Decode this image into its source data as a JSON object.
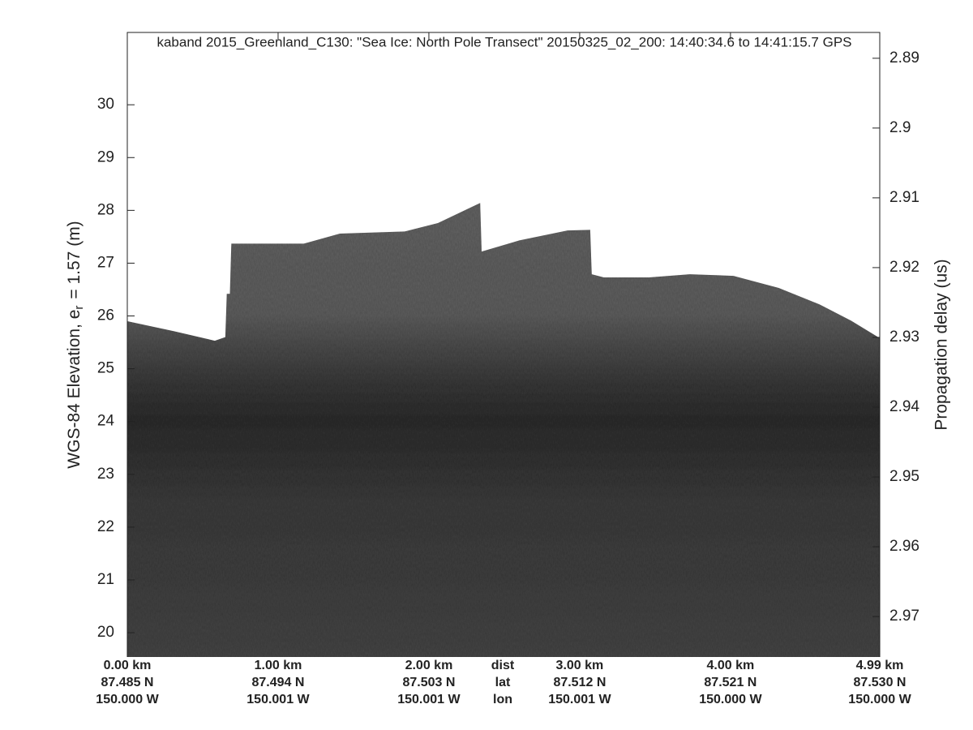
{
  "chart_data": {
    "type": "echogram",
    "title": "kaband 2015_Greenland_C130: \"Sea Ice: North Pole Transect\"  20150325_02_200: 14:40:34.6 to 14:41:15.7 GPS",
    "ylabel": {
      "text": "WGS-84 Elevation, e",
      "subscript": "r",
      "suffix": "= 1.57 (m)"
    },
    "y2label": "Propagation delay (us)",
    "x": [
      0,
      0.31,
      0.58,
      0.65,
      0.66,
      0.68,
      0.69,
      1.17,
      1.41,
      1.84,
      2.06,
      2.34,
      2.35,
      2.6,
      2.92,
      3.07,
      3.08,
      3.16,
      3.46,
      3.73,
      4.02,
      4.32,
      4.59,
      4.8,
      4.99
    ],
    "values": [
      25.9,
      25.71,
      25.53,
      25.6,
      26.42,
      26.42,
      27.37,
      27.37,
      27.56,
      27.6,
      27.76,
      28.14,
      27.22,
      27.43,
      27.62,
      27.63,
      26.79,
      26.73,
      26.73,
      26.79,
      26.76,
      26.53,
      26.22,
      25.91,
      25.58
    ],
    "xlim": [
      0,
      4.99
    ],
    "ylim": [
      19.54,
      31.37
    ],
    "y2lim": [
      2.9758,
      2.8863
    ],
    "yticks": [
      20,
      21,
      22,
      23,
      24,
      25,
      26,
      27,
      28,
      29,
      30
    ],
    "y2ticks": [
      2.89,
      2.9,
      2.91,
      2.92,
      2.93,
      2.94,
      2.95,
      2.96,
      2.97
    ],
    "xticks": [
      {
        "value": 0,
        "label": "0.00 km"
      },
      {
        "value": 1,
        "label": "1.00 km"
      },
      {
        "value": 2,
        "label": "2.00 km"
      },
      {
        "value": 3,
        "label": "3.00 km"
      },
      {
        "value": 4,
        "label": "4.00 km"
      },
      {
        "value": 4.99,
        "label": "4.99 km"
      }
    ],
    "lat_labels": [
      "87.485 N",
      "87.494 N",
      "87.503 N",
      "87.512 N",
      "87.521 N",
      "87.530 N"
    ],
    "lon_labels": [
      "150.000 W",
      "150.001 W",
      "150.001 W",
      "150.001 W",
      "150.000 W",
      "150.000 W"
    ],
    "row_labels": [
      "dist",
      "lat",
      "lon"
    ]
  }
}
